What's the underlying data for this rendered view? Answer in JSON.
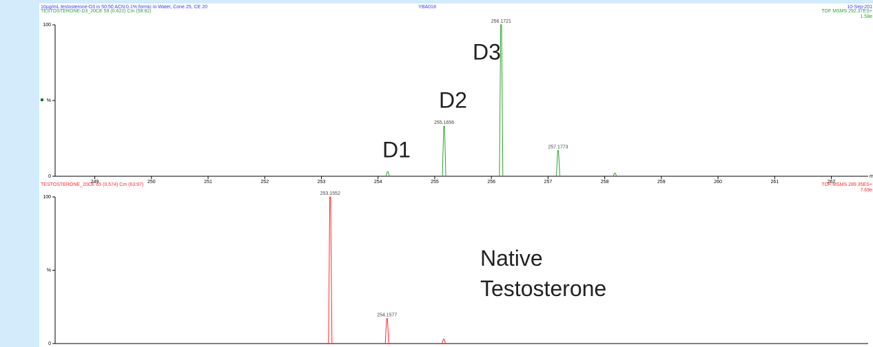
{
  "header": {
    "description": "10µg/mL testosterone-D3 in 50:50 ACN:0.1% formic in Water, Cone 25, CE 20",
    "id": "YBA018",
    "date": "10-Sep-201"
  },
  "chart_data": [
    {
      "type": "spectrum",
      "title": "TESTOSTERONE-D3_20CE 59 (0.622) Cm (58:82)",
      "instrument": "TOF MSMS 292.37ES+",
      "intensity": "1.58e",
      "color": "#2ca02c",
      "x": [
        254.17,
        255.1656,
        256.1721,
        257.1773,
        258.18
      ],
      "values": [
        3,
        33,
        100,
        17,
        2
      ],
      "value_labels": [
        null,
        "255.1656",
        "256.1721",
        "257.1773",
        null
      ],
      "xlim": [
        248.3,
        262.65
      ],
      "xticks": [
        249,
        250,
        251,
        252,
        253,
        254,
        255,
        256,
        257,
        258,
        259,
        260,
        261,
        262
      ],
      "xlabel": "m/z",
      "ylim": [
        0,
        100
      ],
      "yticks": [
        0,
        {
          "value": 50,
          "label": "%"
        },
        100
      ],
      "grid": false,
      "annotations": [
        "D1",
        "D2",
        "D3"
      ]
    },
    {
      "type": "spectrum",
      "title": "TESTOSTERONE_20CE 65 (0.574) Cm (63:97)",
      "instrument": "TOF MSMS 289.35ES+",
      "intensity": "7.69e",
      "color": "#ff2a2a",
      "x": [
        253.1552,
        254.1577,
        255.16
      ],
      "values": [
        100,
        17,
        3
      ],
      "value_labels": [
        "253.1552",
        "254.1577",
        null
      ],
      "xlim": [
        248.3,
        262.65
      ],
      "ylim": [
        0,
        100
      ],
      "yticks": [
        0,
        {
          "value": 50,
          "label": "%"
        },
        100
      ],
      "grid": false,
      "annotations": [
        "Native Testosterone"
      ]
    }
  ]
}
